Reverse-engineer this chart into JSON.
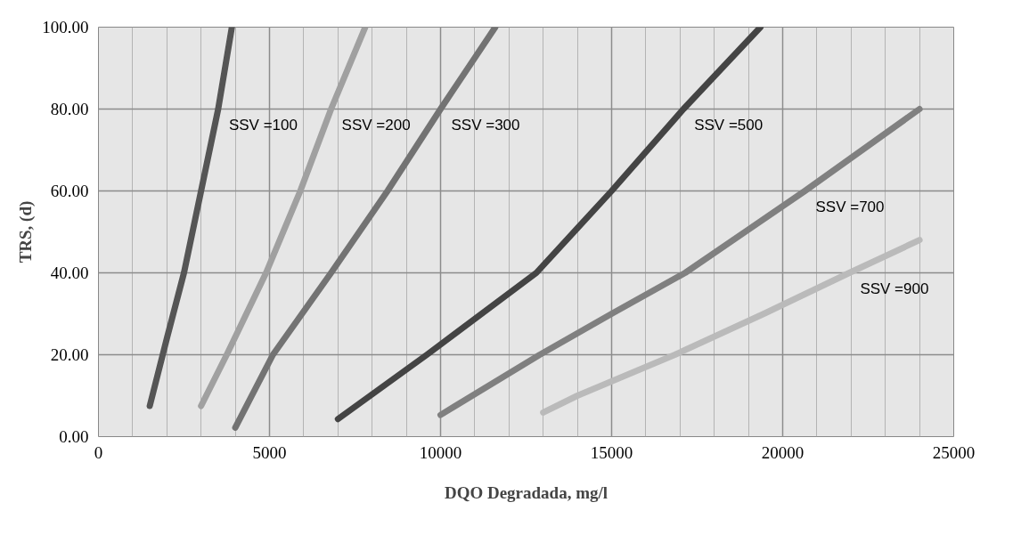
{
  "chart_data": {
    "type": "line",
    "xlabel": "DQO Degradada, mg/l",
    "ylabel": "TRS, (d)",
    "xlim": [
      0,
      25000
    ],
    "ylim": [
      0,
      100
    ],
    "xticks": [
      0,
      5000,
      10000,
      15000,
      20000,
      25000
    ],
    "yticks": [
      {
        "value": 0,
        "label": "0.00"
      },
      {
        "value": 20,
        "label": "20.00"
      },
      {
        "value": 40,
        "label": "40.00"
      },
      {
        "value": 60,
        "label": "60.00"
      },
      {
        "value": 80,
        "label": "80.00"
      },
      {
        "value": 100,
        "label": "100.00"
      }
    ],
    "grid": true,
    "legend": false,
    "marker": "none",
    "line_style": "solid",
    "series": [
      {
        "name": "SSV =100",
        "color": "#555555",
        "x": [
          1500,
          2000,
          2500,
          3000,
          3500,
          3900
        ],
        "values": [
          7.5,
          24,
          40,
          60,
          80,
          100
        ]
      },
      {
        "name": "SSV =200",
        "color": "#a0a0a0",
        "x": [
          3000,
          3750,
          4900,
          5900,
          6800,
          7800
        ],
        "values": [
          7.5,
          20,
          40,
          60,
          80,
          100
        ]
      },
      {
        "name": "SSV =300",
        "color": "#737373",
        "x": [
          4000,
          5100,
          6800,
          8450,
          10000,
          11600
        ],
        "values": [
          2.2,
          20,
          40,
          60,
          80,
          100
        ]
      },
      {
        "name": "SSV =500",
        "color": "#444444",
        "x": [
          7000,
          9600,
          12800,
          15000,
          17100,
          19350
        ],
        "values": [
          4.3,
          20,
          40,
          60,
          80,
          100
        ]
      },
      {
        "name": "SSV =700",
        "color": "#808080",
        "x": [
          10000,
          12900,
          15000,
          17150,
          20650,
          24000
        ],
        "values": [
          5.3,
          20,
          30,
          40,
          60,
          80
        ]
      },
      {
        "name": "SSV =900",
        "color": "#bababa",
        "x": [
          13000,
          14000,
          16850,
          19450,
          21950,
          24000
        ],
        "values": [
          5.9,
          10,
          20,
          30,
          40,
          48
        ]
      }
    ]
  }
}
